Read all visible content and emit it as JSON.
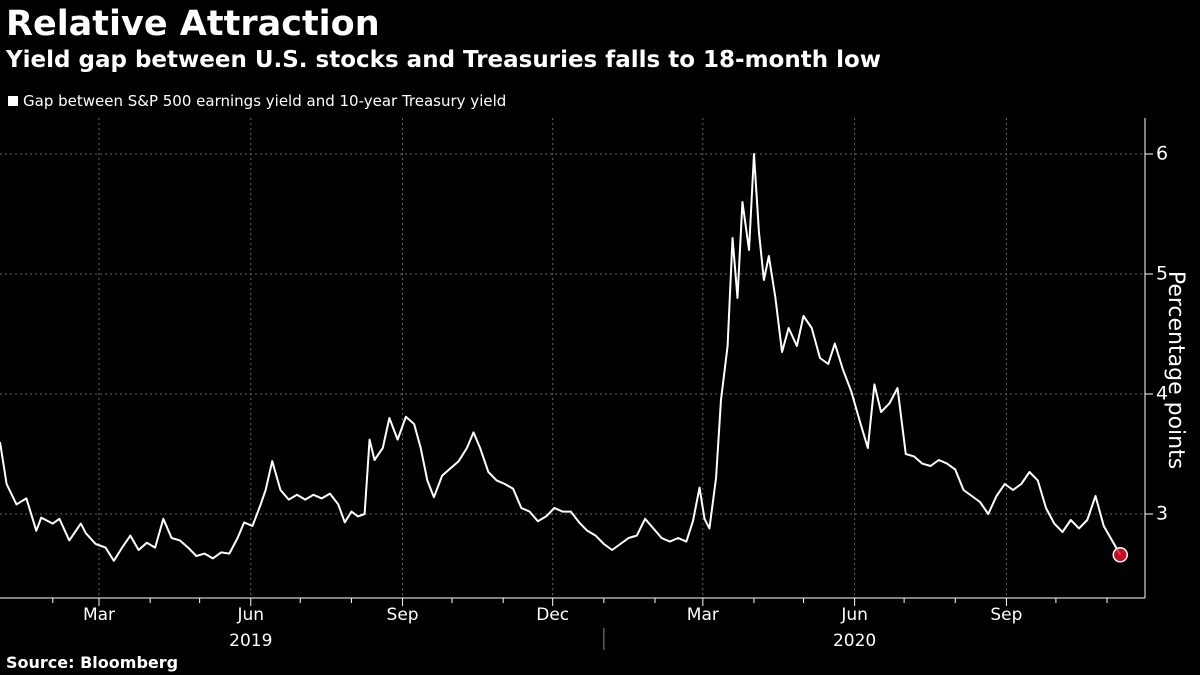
{
  "header": {
    "title": "Relative Attraction",
    "subtitle": "Yield gap between U.S. stocks and Treasuries falls to 18-month low"
  },
  "footer": {
    "source": "Source: Bloomberg"
  },
  "colors": {
    "background": "#000000",
    "line": "#ffffff",
    "marker": "#e8112d",
    "grid": "#666666"
  },
  "chart_data": {
    "type": "line",
    "title": "Relative Attraction",
    "subtitle": "Yield gap between U.S. stocks and Treasuries falls to 18-month low",
    "ylabel": "Percentage points",
    "ylim": [
      2.3,
      6.3
    ],
    "yticks": [
      3,
      4,
      5,
      6
    ],
    "xlim": [
      "2018-12-31",
      "2020-11-24"
    ],
    "xticks": [
      {
        "date": "2019-03-01",
        "label": "Mar"
      },
      {
        "date": "2019-06-01",
        "label": "Jun"
      },
      {
        "date": "2019-09-01",
        "label": "Sep"
      },
      {
        "date": "2019-12-01",
        "label": "Dec"
      },
      {
        "date": "2020-03-01",
        "label": "Mar"
      },
      {
        "date": "2020-06-01",
        "label": "Jun"
      },
      {
        "date": "2020-09-01",
        "label": "Sep"
      }
    ],
    "minor_ticks": [
      "2019-02-01",
      "2019-04-01",
      "2019-05-01",
      "2019-07-01",
      "2019-08-01",
      "2019-10-01",
      "2019-11-01",
      "2020-01-01",
      "2020-02-01",
      "2020-04-01",
      "2020-05-01",
      "2020-07-01",
      "2020-08-01",
      "2020-10-01",
      "2020-11-01"
    ],
    "year_labels": [
      {
        "label": "2019",
        "date": "2019-06-01"
      },
      {
        "label": "2020",
        "date": "2020-06-01"
      }
    ],
    "year_divider": "2020-01-01",
    "grid": true,
    "legend": {
      "placement": "top-left"
    },
    "series": [
      {
        "name": "Gap between S&P 500 earnings yield and 10-year Treasury yield",
        "points": [
          [
            "2018-12-31",
            3.6
          ],
          [
            "2019-01-04",
            3.25
          ],
          [
            "2019-01-10",
            3.08
          ],
          [
            "2019-01-16",
            3.13
          ],
          [
            "2019-01-22",
            2.86
          ],
          [
            "2019-01-25",
            2.97
          ],
          [
            "2019-02-01",
            2.92
          ],
          [
            "2019-02-05",
            2.96
          ],
          [
            "2019-02-11",
            2.78
          ],
          [
            "2019-02-18",
            2.92
          ],
          [
            "2019-02-21",
            2.84
          ],
          [
            "2019-02-27",
            2.75
          ],
          [
            "2019-03-05",
            2.72
          ],
          [
            "2019-03-10",
            2.61
          ],
          [
            "2019-03-15",
            2.72
          ],
          [
            "2019-03-20",
            2.82
          ],
          [
            "2019-03-25",
            2.7
          ],
          [
            "2019-03-30",
            2.76
          ],
          [
            "2019-04-04",
            2.72
          ],
          [
            "2019-04-09",
            2.96
          ],
          [
            "2019-04-14",
            2.8
          ],
          [
            "2019-04-19",
            2.78
          ],
          [
            "2019-04-24",
            2.72
          ],
          [
            "2019-04-29",
            2.65
          ],
          [
            "2019-05-04",
            2.67
          ],
          [
            "2019-05-09",
            2.63
          ],
          [
            "2019-05-14",
            2.68
          ],
          [
            "2019-05-19",
            2.67
          ],
          [
            "2019-05-24",
            2.8
          ],
          [
            "2019-05-28",
            2.93
          ],
          [
            "2019-06-02",
            2.9
          ],
          [
            "2019-06-07",
            3.08
          ],
          [
            "2019-06-10",
            3.2
          ],
          [
            "2019-06-14",
            3.44
          ],
          [
            "2019-06-19",
            3.2
          ],
          [
            "2019-06-24",
            3.12
          ],
          [
            "2019-06-29",
            3.16
          ],
          [
            "2019-07-04",
            3.12
          ],
          [
            "2019-07-09",
            3.16
          ],
          [
            "2019-07-14",
            3.13
          ],
          [
            "2019-07-19",
            3.17
          ],
          [
            "2019-07-24",
            3.08
          ],
          [
            "2019-07-28",
            2.93
          ],
          [
            "2019-08-01",
            3.02
          ],
          [
            "2019-08-05",
            2.98
          ],
          [
            "2019-08-09",
            3.0
          ],
          [
            "2019-08-12",
            3.62
          ],
          [
            "2019-08-15",
            3.45
          ],
          [
            "2019-08-20",
            3.55
          ],
          [
            "2019-08-24",
            3.8
          ],
          [
            "2019-08-29",
            3.62
          ],
          [
            "2019-09-03",
            3.81
          ],
          [
            "2019-09-08",
            3.75
          ],
          [
            "2019-09-12",
            3.55
          ],
          [
            "2019-09-16",
            3.28
          ],
          [
            "2019-09-20",
            3.14
          ],
          [
            "2019-09-25",
            3.32
          ],
          [
            "2019-09-30",
            3.38
          ],
          [
            "2019-10-05",
            3.44
          ],
          [
            "2019-10-10",
            3.55
          ],
          [
            "2019-10-14",
            3.68
          ],
          [
            "2019-10-18",
            3.55
          ],
          [
            "2019-10-23",
            3.35
          ],
          [
            "2019-10-28",
            3.28
          ],
          [
            "2019-11-02",
            3.25
          ],
          [
            "2019-11-07",
            3.21
          ],
          [
            "2019-11-12",
            3.05
          ],
          [
            "2019-11-17",
            3.02
          ],
          [
            "2019-11-22",
            2.94
          ],
          [
            "2019-11-27",
            2.98
          ],
          [
            "2019-12-02",
            3.05
          ],
          [
            "2019-12-07",
            3.02
          ],
          [
            "2019-12-12",
            3.02
          ],
          [
            "2019-12-17",
            2.93
          ],
          [
            "2019-12-22",
            2.86
          ],
          [
            "2019-12-27",
            2.82
          ],
          [
            "2020-01-01",
            2.75
          ],
          [
            "2020-01-06",
            2.7
          ],
          [
            "2020-01-11",
            2.75
          ],
          [
            "2020-01-16",
            2.8
          ],
          [
            "2020-01-21",
            2.82
          ],
          [
            "2020-01-26",
            2.96
          ],
          [
            "2020-01-31",
            2.88
          ],
          [
            "2020-02-05",
            2.8
          ],
          [
            "2020-02-10",
            2.77
          ],
          [
            "2020-02-15",
            2.8
          ],
          [
            "2020-02-20",
            2.77
          ],
          [
            "2020-02-24",
            2.94
          ],
          [
            "2020-02-28",
            3.22
          ],
          [
            "2020-03-02",
            2.96
          ],
          [
            "2020-03-05",
            2.88
          ],
          [
            "2020-03-09",
            3.3
          ],
          [
            "2020-03-12",
            3.95
          ],
          [
            "2020-03-16",
            4.4
          ],
          [
            "2020-03-19",
            5.3
          ],
          [
            "2020-03-22",
            4.8
          ],
          [
            "2020-03-25",
            5.6
          ],
          [
            "2020-03-29",
            5.2
          ],
          [
            "2020-04-01",
            6.0
          ],
          [
            "2020-04-04",
            5.35
          ],
          [
            "2020-04-07",
            4.95
          ],
          [
            "2020-04-10",
            5.15
          ],
          [
            "2020-04-14",
            4.8
          ],
          [
            "2020-04-18",
            4.35
          ],
          [
            "2020-04-22",
            4.55
          ],
          [
            "2020-04-27",
            4.4
          ],
          [
            "2020-05-01",
            4.65
          ],
          [
            "2020-05-06",
            4.55
          ],
          [
            "2020-05-11",
            4.3
          ],
          [
            "2020-05-16",
            4.25
          ],
          [
            "2020-05-20",
            4.42
          ],
          [
            "2020-05-25",
            4.2
          ],
          [
            "2020-05-30",
            4.02
          ],
          [
            "2020-06-04",
            3.78
          ],
          [
            "2020-06-09",
            3.55
          ],
          [
            "2020-06-13",
            4.08
          ],
          [
            "2020-06-17",
            3.85
          ],
          [
            "2020-06-22",
            3.92
          ],
          [
            "2020-06-27",
            4.05
          ],
          [
            "2020-07-02",
            3.5
          ],
          [
            "2020-07-07",
            3.48
          ],
          [
            "2020-07-12",
            3.42
          ],
          [
            "2020-07-17",
            3.4
          ],
          [
            "2020-07-22",
            3.45
          ],
          [
            "2020-07-27",
            3.42
          ],
          [
            "2020-08-01",
            3.37
          ],
          [
            "2020-08-06",
            3.2
          ],
          [
            "2020-08-11",
            3.15
          ],
          [
            "2020-08-16",
            3.1
          ],
          [
            "2020-08-21",
            3.0
          ],
          [
            "2020-08-26",
            3.15
          ],
          [
            "2020-08-31",
            3.25
          ],
          [
            "2020-09-05",
            3.2
          ],
          [
            "2020-09-10",
            3.25
          ],
          [
            "2020-09-15",
            3.35
          ],
          [
            "2020-09-20",
            3.28
          ],
          [
            "2020-09-25",
            3.05
          ],
          [
            "2020-09-30",
            2.92
          ],
          [
            "2020-10-05",
            2.85
          ],
          [
            "2020-10-10",
            2.95
          ],
          [
            "2020-10-15",
            2.88
          ],
          [
            "2020-10-20",
            2.95
          ],
          [
            "2020-10-25",
            3.15
          ],
          [
            "2020-10-30",
            2.9
          ],
          [
            "2020-11-04",
            2.78
          ],
          [
            "2020-11-09",
            2.66
          ]
        ],
        "last_point_marker": true
      }
    ]
  }
}
